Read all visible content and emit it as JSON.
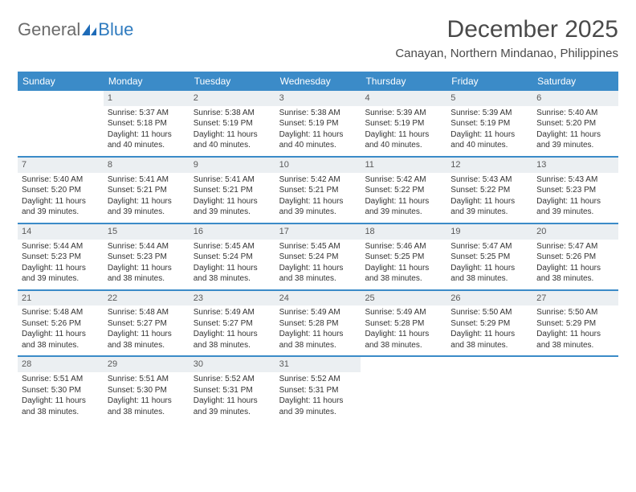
{
  "brand": {
    "part1": "General",
    "part2": "Blue"
  },
  "title": "December 2025",
  "location": "Canayan, Northern Mindanao, Philippines",
  "colors": {
    "header_bg": "#3b8bc8",
    "daynum_bg": "#ebeff2",
    "rule": "#3b8bc8",
    "text": "#333333",
    "logo_gray": "#6b6b6b",
    "logo_blue": "#2f7bbf"
  },
  "typography": {
    "title_fontsize": 30,
    "location_fontsize": 15,
    "weekday_fontsize": 12,
    "daynum_fontsize": 11,
    "cell_fontsize": 10
  },
  "weekdays": [
    "Sunday",
    "Monday",
    "Tuesday",
    "Wednesday",
    "Thursday",
    "Friday",
    "Saturday"
  ],
  "weeks": [
    [
      null,
      {
        "d": "1",
        "sr": "Sunrise: 5:37 AM",
        "ss": "Sunset: 5:18 PM",
        "dl1": "Daylight: 11 hours",
        "dl2": "and 40 minutes."
      },
      {
        "d": "2",
        "sr": "Sunrise: 5:38 AM",
        "ss": "Sunset: 5:19 PM",
        "dl1": "Daylight: 11 hours",
        "dl2": "and 40 minutes."
      },
      {
        "d": "3",
        "sr": "Sunrise: 5:38 AM",
        "ss": "Sunset: 5:19 PM",
        "dl1": "Daylight: 11 hours",
        "dl2": "and 40 minutes."
      },
      {
        "d": "4",
        "sr": "Sunrise: 5:39 AM",
        "ss": "Sunset: 5:19 PM",
        "dl1": "Daylight: 11 hours",
        "dl2": "and 40 minutes."
      },
      {
        "d": "5",
        "sr": "Sunrise: 5:39 AM",
        "ss": "Sunset: 5:19 PM",
        "dl1": "Daylight: 11 hours",
        "dl2": "and 40 minutes."
      },
      {
        "d": "6",
        "sr": "Sunrise: 5:40 AM",
        "ss": "Sunset: 5:20 PM",
        "dl1": "Daylight: 11 hours",
        "dl2": "and 39 minutes."
      }
    ],
    [
      {
        "d": "7",
        "sr": "Sunrise: 5:40 AM",
        "ss": "Sunset: 5:20 PM",
        "dl1": "Daylight: 11 hours",
        "dl2": "and 39 minutes."
      },
      {
        "d": "8",
        "sr": "Sunrise: 5:41 AM",
        "ss": "Sunset: 5:21 PM",
        "dl1": "Daylight: 11 hours",
        "dl2": "and 39 minutes."
      },
      {
        "d": "9",
        "sr": "Sunrise: 5:41 AM",
        "ss": "Sunset: 5:21 PM",
        "dl1": "Daylight: 11 hours",
        "dl2": "and 39 minutes."
      },
      {
        "d": "10",
        "sr": "Sunrise: 5:42 AM",
        "ss": "Sunset: 5:21 PM",
        "dl1": "Daylight: 11 hours",
        "dl2": "and 39 minutes."
      },
      {
        "d": "11",
        "sr": "Sunrise: 5:42 AM",
        "ss": "Sunset: 5:22 PM",
        "dl1": "Daylight: 11 hours",
        "dl2": "and 39 minutes."
      },
      {
        "d": "12",
        "sr": "Sunrise: 5:43 AM",
        "ss": "Sunset: 5:22 PM",
        "dl1": "Daylight: 11 hours",
        "dl2": "and 39 minutes."
      },
      {
        "d": "13",
        "sr": "Sunrise: 5:43 AM",
        "ss": "Sunset: 5:23 PM",
        "dl1": "Daylight: 11 hours",
        "dl2": "and 39 minutes."
      }
    ],
    [
      {
        "d": "14",
        "sr": "Sunrise: 5:44 AM",
        "ss": "Sunset: 5:23 PM",
        "dl1": "Daylight: 11 hours",
        "dl2": "and 39 minutes."
      },
      {
        "d": "15",
        "sr": "Sunrise: 5:44 AM",
        "ss": "Sunset: 5:23 PM",
        "dl1": "Daylight: 11 hours",
        "dl2": "and 38 minutes."
      },
      {
        "d": "16",
        "sr": "Sunrise: 5:45 AM",
        "ss": "Sunset: 5:24 PM",
        "dl1": "Daylight: 11 hours",
        "dl2": "and 38 minutes."
      },
      {
        "d": "17",
        "sr": "Sunrise: 5:45 AM",
        "ss": "Sunset: 5:24 PM",
        "dl1": "Daylight: 11 hours",
        "dl2": "and 38 minutes."
      },
      {
        "d": "18",
        "sr": "Sunrise: 5:46 AM",
        "ss": "Sunset: 5:25 PM",
        "dl1": "Daylight: 11 hours",
        "dl2": "and 38 minutes."
      },
      {
        "d": "19",
        "sr": "Sunrise: 5:47 AM",
        "ss": "Sunset: 5:25 PM",
        "dl1": "Daylight: 11 hours",
        "dl2": "and 38 minutes."
      },
      {
        "d": "20",
        "sr": "Sunrise: 5:47 AM",
        "ss": "Sunset: 5:26 PM",
        "dl1": "Daylight: 11 hours",
        "dl2": "and 38 minutes."
      }
    ],
    [
      {
        "d": "21",
        "sr": "Sunrise: 5:48 AM",
        "ss": "Sunset: 5:26 PM",
        "dl1": "Daylight: 11 hours",
        "dl2": "and 38 minutes."
      },
      {
        "d": "22",
        "sr": "Sunrise: 5:48 AM",
        "ss": "Sunset: 5:27 PM",
        "dl1": "Daylight: 11 hours",
        "dl2": "and 38 minutes."
      },
      {
        "d": "23",
        "sr": "Sunrise: 5:49 AM",
        "ss": "Sunset: 5:27 PM",
        "dl1": "Daylight: 11 hours",
        "dl2": "and 38 minutes."
      },
      {
        "d": "24",
        "sr": "Sunrise: 5:49 AM",
        "ss": "Sunset: 5:28 PM",
        "dl1": "Daylight: 11 hours",
        "dl2": "and 38 minutes."
      },
      {
        "d": "25",
        "sr": "Sunrise: 5:49 AM",
        "ss": "Sunset: 5:28 PM",
        "dl1": "Daylight: 11 hours",
        "dl2": "and 38 minutes."
      },
      {
        "d": "26",
        "sr": "Sunrise: 5:50 AM",
        "ss": "Sunset: 5:29 PM",
        "dl1": "Daylight: 11 hours",
        "dl2": "and 38 minutes."
      },
      {
        "d": "27",
        "sr": "Sunrise: 5:50 AM",
        "ss": "Sunset: 5:29 PM",
        "dl1": "Daylight: 11 hours",
        "dl2": "and 38 minutes."
      }
    ],
    [
      {
        "d": "28",
        "sr": "Sunrise: 5:51 AM",
        "ss": "Sunset: 5:30 PM",
        "dl1": "Daylight: 11 hours",
        "dl2": "and 38 minutes."
      },
      {
        "d": "29",
        "sr": "Sunrise: 5:51 AM",
        "ss": "Sunset: 5:30 PM",
        "dl1": "Daylight: 11 hours",
        "dl2": "and 38 minutes."
      },
      {
        "d": "30",
        "sr": "Sunrise: 5:52 AM",
        "ss": "Sunset: 5:31 PM",
        "dl1": "Daylight: 11 hours",
        "dl2": "and 39 minutes."
      },
      {
        "d": "31",
        "sr": "Sunrise: 5:52 AM",
        "ss": "Sunset: 5:31 PM",
        "dl1": "Daylight: 11 hours",
        "dl2": "and 39 minutes."
      },
      null,
      null,
      null
    ]
  ]
}
